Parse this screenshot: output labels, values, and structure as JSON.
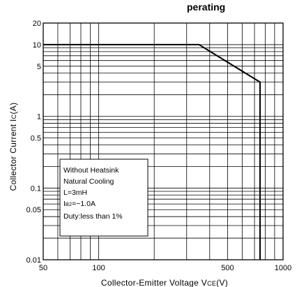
{
  "chart_data": {
    "type": "line",
    "title_fragment": "perating",
    "xlabel": "Collector-Emitter Voltage VCE(V)",
    "ylabel": "Collector Current IC(A)",
    "xscale": "log",
    "yscale": "log",
    "xlim": [
      50,
      1000
    ],
    "ylim": [
      0.01,
      20
    ],
    "x_ticks": [
      {
        "value": 50,
        "label": "50"
      },
      {
        "value": 100,
        "label": "100"
      },
      {
        "value": 500,
        "label": "500"
      },
      {
        "value": 1000,
        "label": "1000"
      }
    ],
    "y_ticks": [
      {
        "value": 20,
        "label": "20"
      },
      {
        "value": 10,
        "label": "10"
      },
      {
        "value": 5,
        "label": "5"
      },
      {
        "value": 1,
        "label": "1"
      },
      {
        "value": 0.5,
        "label": "0.5"
      },
      {
        "value": 0.1,
        "label": "0.1"
      },
      {
        "value": 0.05,
        "label": "0.05"
      },
      {
        "value": 0.01,
        "label": "0.01"
      }
    ],
    "grid": true,
    "series": [
      {
        "x": [
          50,
          350,
          750,
          750
        ],
        "y": [
          10,
          10,
          3,
          0.01
        ]
      }
    ],
    "annotation_lines": [
      "Without Heatsink",
      "Natural Cooling",
      "L=3mH",
      "IB2=−1.0A",
      "Duty:less than 1%"
    ]
  }
}
